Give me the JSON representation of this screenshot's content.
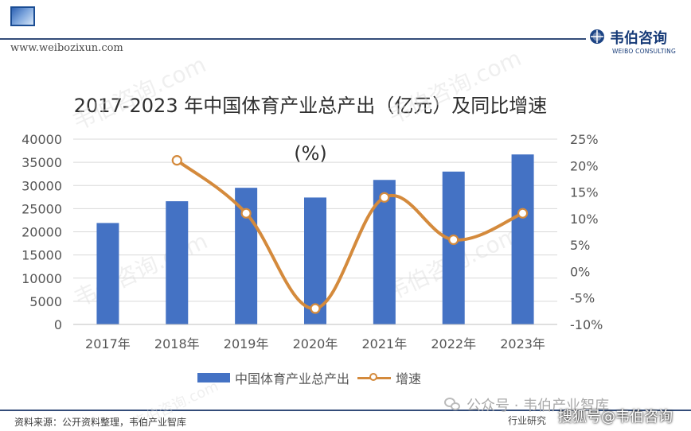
{
  "header": {
    "site_url": "www.weibozixun.com",
    "brand_cn": "韦伯咨询",
    "brand_en": "WEIBO CONSULTING"
  },
  "watermark_text": "韦伯咨询.com",
  "chart": {
    "title_line1": "2017-2023 年中国体育产业总产出（亿元）及同比增速",
    "title_line2": "(%)"
  },
  "chart_data": {
    "type": "bar",
    "title": "2017-2023 年中国体育产业总产出（亿元）及同比增速 (%)",
    "categories": [
      "2017年",
      "2018年",
      "2019年",
      "2020年",
      "2021年",
      "2022年",
      "2023年"
    ],
    "series": [
      {
        "name": "中国体育产业总产出",
        "type": "bar",
        "axis": "left",
        "values": [
          21900,
          26600,
          29500,
          27400,
          31200,
          33000,
          36700
        ],
        "color": "#4472c4"
      },
      {
        "name": "增速",
        "type": "line",
        "axis": "right",
        "values": [
          null,
          21.0,
          11.0,
          -7.0,
          14.0,
          6.0,
          11.0
        ],
        "color": "#d48a3c",
        "marker": "circle"
      }
    ],
    "ylim_left": [
      0,
      40000
    ],
    "y_ticks_left": [
      0,
      5000,
      10000,
      15000,
      20000,
      25000,
      30000,
      35000,
      40000
    ],
    "ylim_right": [
      -10,
      25
    ],
    "y_ticks_right": [
      "-10%",
      "-5%",
      "0%",
      "5%",
      "10%",
      "15%",
      "20%",
      "25%"
    ],
    "grid": true,
    "legend_position": "bottom"
  },
  "legend": {
    "bar_label": "中国体育产业总产出",
    "line_label": "增速"
  },
  "footer": {
    "source": "资料来源：公开资料整理，韦伯产业智库",
    "wechat_account": "公众号 · 韦伯产业智库",
    "research_text": "行业研究",
    "sohu_account": "搜狐号@韦伯咨询"
  }
}
